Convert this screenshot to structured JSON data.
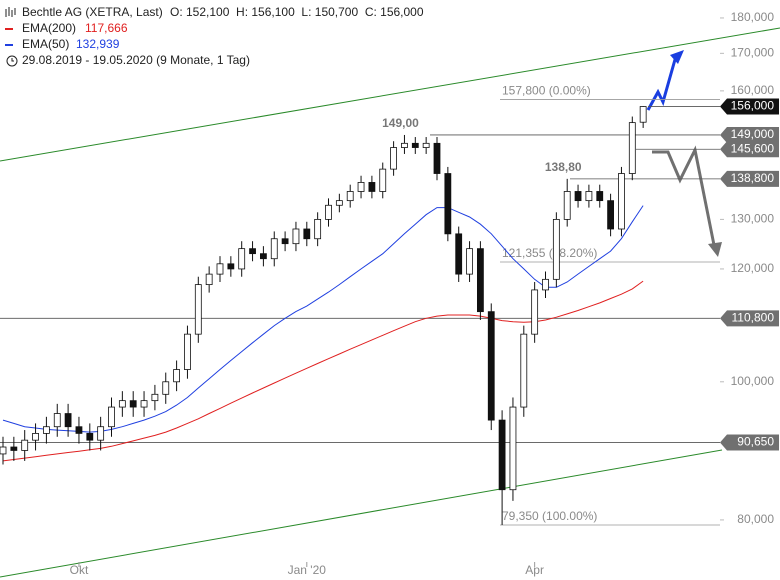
{
  "chart_data": {
    "type": "candlestick",
    "title": "Bechtle AG (XETRA, Last)",
    "ohlc_summary": "O: 152,100  H: 156,100  L: 150,700  C: 156,000",
    "period": "29.08.2019 - 19.05.2020 (9 Monate, 1 Tag)",
    "log_scale": true,
    "ylim": [
      72.6,
      185.3
    ],
    "yticks": [
      {
        "value": 180,
        "label": "180,000"
      },
      {
        "value": 170,
        "label": "170,000"
      },
      {
        "value": 160,
        "label": "160,000"
      },
      {
        "value": 130,
        "label": "130,000"
      },
      {
        "value": 120,
        "label": "120,000"
      },
      {
        "value": 100,
        "label": "100,000"
      },
      {
        "value": 80,
        "label": "80,000"
      }
    ],
    "categories": [
      null,
      null,
      null,
      null,
      null,
      null,
      null,
      "Okt",
      null,
      null,
      null,
      null,
      null,
      null,
      null,
      null,
      null,
      null,
      null,
      null,
      null,
      null,
      null,
      null,
      null,
      null,
      null,
      null,
      "Jan '20",
      null,
      null,
      null,
      null,
      null,
      null,
      null,
      null,
      null,
      null,
      null,
      null,
      null,
      null,
      null,
      null,
      null,
      null,
      null,
      null,
      "Apr",
      null,
      null,
      null,
      null,
      null,
      null,
      null,
      null,
      null,
      null
    ],
    "open": [
      89,
      90,
      89.5,
      91,
      92,
      93,
      95,
      93,
      92,
      91,
      93,
      96,
      97,
      96,
      97,
      98,
      100,
      102,
      108,
      117,
      119,
      121,
      120,
      124,
      123,
      122,
      126,
      125,
      128,
      126,
      130,
      133,
      134,
      136,
      138,
      136,
      141,
      146,
      147,
      146,
      147,
      140,
      127,
      119,
      124,
      112,
      94,
      84,
      96,
      108,
      116,
      118,
      130,
      136,
      134,
      136,
      134,
      128,
      140,
      152.1
    ],
    "high": [
      91.5,
      91.5,
      92.5,
      93.5,
      94.5,
      96.5,
      96.5,
      94.5,
      93.5,
      94.5,
      97.5,
      98.5,
      98.5,
      98.5,
      99.5,
      101.5,
      103.5,
      109.5,
      118.5,
      120.5,
      122.5,
      122.5,
      125.5,
      125.5,
      124.5,
      127.5,
      127.5,
      129.5,
      129.5,
      131.5,
      134.5,
      135.5,
      137.5,
      139.5,
      139.5,
      142.5,
      147.5,
      149,
      148.5,
      148.5,
      148.5,
      141.5,
      128.5,
      125.5,
      125.5,
      113.5,
      95.5,
      97.5,
      109.5,
      117.5,
      119.5,
      131.5,
      138.8,
      137.5,
      137.5,
      137.5,
      135.5,
      141.5,
      153.5,
      156.1
    ],
    "low": [
      87.5,
      88,
      88,
      89.5,
      90.5,
      91.5,
      91.5,
      90.5,
      89.5,
      89.5,
      91.5,
      94.5,
      94.5,
      94.5,
      95.5,
      96.5,
      98.5,
      100.5,
      106.5,
      115.5,
      117.5,
      118.5,
      118.5,
      121.5,
      120.5,
      120.5,
      123.5,
      123.5,
      124.5,
      124.5,
      128.5,
      131.5,
      132.5,
      134.5,
      134.5,
      134.5,
      139.5,
      144.5,
      144.5,
      144.5,
      138.5,
      125.5,
      117.5,
      117.5,
      110.5,
      92.5,
      79.35,
      82.5,
      94.5,
      106.5,
      114.5,
      116.5,
      128.5,
      132.5,
      132.5,
      132.5,
      126.5,
      126.5,
      138.5,
      150.7
    ],
    "close": [
      90,
      89.5,
      91,
      92,
      93,
      95,
      93,
      92,
      91,
      93,
      96,
      97,
      96,
      97,
      98,
      100,
      102,
      108,
      117,
      119,
      121,
      120,
      124,
      123,
      122,
      126,
      125,
      128,
      126,
      130,
      133,
      134,
      136,
      138,
      136,
      141,
      146,
      147,
      146,
      147,
      140,
      127,
      119,
      124,
      112,
      94,
      84,
      96,
      108,
      116,
      118,
      130,
      136,
      134,
      136,
      134,
      128,
      140,
      152,
      156
    ],
    "series": [
      {
        "name": "EMA(200)",
        "color": "#e02020",
        "value_label": "117,666",
        "values": [
          88,
          88.2,
          88.4,
          88.6,
          88.8,
          89,
          89.2,
          89.4,
          89.6,
          89.8,
          90.1,
          90.5,
          90.9,
          91.3,
          91.7,
          92.2,
          92.8,
          93.5,
          94.2,
          95,
          95.8,
          96.6,
          97.4,
          98.2,
          99,
          99.8,
          100.6,
          101.4,
          102.2,
          103,
          103.8,
          104.6,
          105.4,
          106.2,
          107,
          107.8,
          108.6,
          109.4,
          110.2,
          110.8,
          111.2,
          111.4,
          111.4,
          111.4,
          111.2,
          110.8,
          110.4,
          110.2,
          110.1,
          110.2,
          110.5,
          111,
          111.6,
          112.2,
          112.9,
          113.6,
          114.4,
          115.2,
          116.2,
          117.666
        ]
      },
      {
        "name": "EMA(50)",
        "color": "#2040e0",
        "value_label": "132,939",
        "values": [
          94,
          93.5,
          93,
          92.8,
          92.6,
          92.5,
          92.4,
          92.3,
          92.2,
          92.3,
          92.6,
          93,
          93.5,
          94,
          94.6,
          95.3,
          96.3,
          97.5,
          99,
          100.5,
          102,
          103.5,
          105,
          106.5,
          108,
          109.5,
          110.8,
          112,
          113,
          114.3,
          115.6,
          117,
          118.5,
          120,
          121.5,
          123,
          125,
          127,
          129,
          131,
          132.5,
          132.5,
          131.5,
          130.5,
          129,
          127,
          124.5,
          122,
          120,
          118,
          116.5,
          116.5,
          117.5,
          119,
          120.5,
          122,
          123.5,
          126,
          129.5,
          132.939
        ]
      }
    ],
    "levels": [
      {
        "value": 156,
        "label": "156,000",
        "color": "#111111"
      },
      {
        "value": 149,
        "label": "149,000",
        "color": "#707070"
      },
      {
        "value": 145.6,
        "label": "145,600",
        "color": "#707070"
      },
      {
        "value": 138.8,
        "label": "138,800",
        "color": "#707070"
      },
      {
        "value": 110.8,
        "label": "110,800",
        "color": "#707070"
      },
      {
        "value": 90.65,
        "label": "90,650",
        "color": "#707070"
      }
    ],
    "fib_levels": [
      {
        "value": 157.8,
        "label": "157,800 (0.00%)"
      },
      {
        "value": 121.355,
        "label": "121,355 (38.20%)"
      },
      {
        "value": 79.35,
        "label": "79,350 (100.00%)"
      }
    ],
    "annotations": [
      {
        "value": 149,
        "label": "149,00"
      },
      {
        "value": 138.8,
        "label": "138,80"
      }
    ]
  }
}
